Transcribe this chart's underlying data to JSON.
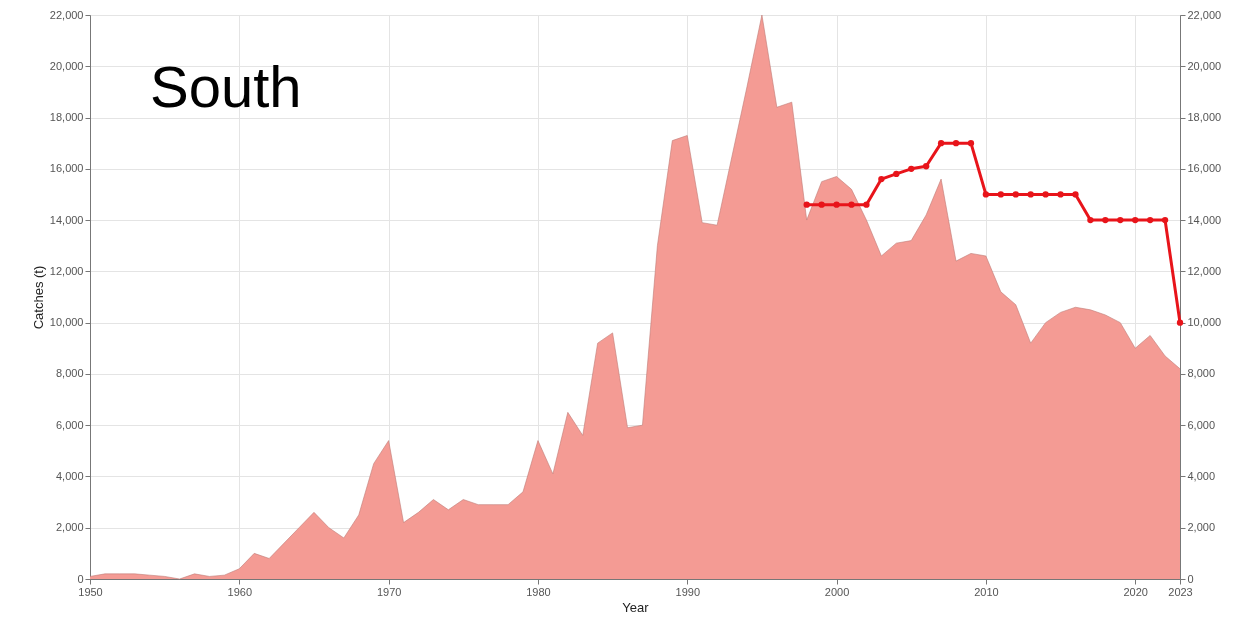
{
  "chart_data": {
    "type": "area",
    "title": "South",
    "xlabel": "Year",
    "ylabel": "Catches (t)",
    "xlim": [
      1950,
      2023
    ],
    "xticks": [
      1950,
      1960,
      1970,
      1980,
      1990,
      2000,
      2010,
      2020,
      2023
    ],
    "ylim": [
      0,
      22000
    ],
    "yticks": [
      0,
      {
        "value": 2000,
        "label": "2,000"
      },
      {
        "value": 4000,
        "label": "4,000"
      },
      {
        "value": 6000,
        "label": "6,000"
      },
      {
        "value": 8000,
        "label": "8,000"
      },
      {
        "value": 10000,
        "label": "10,000"
      },
      {
        "value": 12000,
        "label": "12,000"
      },
      {
        "value": 14000,
        "label": "14,000"
      },
      {
        "value": 16000,
        "label": "16,000"
      },
      {
        "value": 18000,
        "label": "18,000"
      },
      {
        "value": 20000,
        "label": "20,000"
      },
      {
        "value": 22000,
        "label": "22,000"
      }
    ],
    "y2lim": [
      0,
      22000
    ],
    "y2ticks": [
      0,
      {
        "value": 2000,
        "label": "2,000"
      },
      {
        "value": 4000,
        "label": "4,000"
      },
      {
        "value": 6000,
        "label": "6,000"
      },
      {
        "value": 8000,
        "label": "8,000"
      },
      {
        "value": 10000,
        "label": "10,000"
      },
      {
        "value": 12000,
        "label": "12,000"
      },
      {
        "value": 14000,
        "label": "14,000"
      },
      {
        "value": 16000,
        "label": "16,000"
      },
      {
        "value": 18000,
        "label": "18,000"
      },
      {
        "value": 20000,
        "label": "20,000"
      },
      {
        "value": 22000,
        "label": "22,000"
      }
    ],
    "grid": true,
    "series": [
      {
        "color": "#f49b94",
        "x": [
          1950,
          1951,
          1952,
          1953,
          1954,
          1955,
          1956,
          1957,
          1958,
          1959,
          1960,
          1961,
          1962,
          1963,
          1964,
          1965,
          1966,
          1967,
          1968,
          1969,
          1970,
          1971,
          1972,
          1973,
          1974,
          1975,
          1976,
          1977,
          1978,
          1979,
          1980,
          1981,
          1982,
          1983,
          1984,
          1985,
          1986,
          1987,
          1988,
          1989,
          1990,
          1991,
          1992,
          1993,
          1994,
          1995,
          1996,
          1997,
          1998,
          1999,
          2000,
          2001,
          2002,
          2003,
          2004,
          2005,
          2006,
          2007,
          2008,
          2009,
          2010,
          2011,
          2012,
          2013,
          2014,
          2015,
          2016,
          2017,
          2018,
          2019,
          2020,
          2021,
          2022,
          2023
        ],
        "values": [
          100,
          200,
          200,
          200,
          150,
          100,
          0,
          200,
          100,
          150,
          400,
          1000,
          800,
          1400,
          2000,
          2600,
          2000,
          1600,
          2500,
          4500,
          5400,
          2200,
          2600,
          3100,
          2700,
          3100,
          2900,
          2900,
          2900,
          3400,
          5400,
          4100,
          6500,
          5600,
          9200,
          9600,
          5900,
          6000,
          13000,
          17100,
          17300,
          13900,
          13800,
          16500,
          19200,
          22000,
          18400,
          18600,
          14000,
          15500,
          15700,
          15200,
          14000,
          12600,
          13100,
          13200,
          14200,
          15600,
          12400,
          12700,
          12600,
          11200,
          10700,
          9200,
          10000,
          10400,
          10600,
          10500,
          10300,
          10000,
          9000,
          9500,
          8700,
          8200
        ]
      },
      {
        "type": "line",
        "axis": "y2",
        "color": "#e8141a",
        "marker": "circle",
        "line_style": "solid",
        "x": [
          1998,
          1999,
          2000,
          2001,
          2002,
          2003,
          2004,
          2005,
          2006,
          2007,
          2008,
          2009,
          2010,
          2011,
          2012,
          2013,
          2014,
          2015,
          2016,
          2017,
          2018,
          2019,
          2020,
          2021,
          2022,
          2023
        ],
        "values": [
          14600,
          14600,
          14600,
          14600,
          14600,
          15600,
          15800,
          16000,
          16100,
          17000,
          17000,
          17000,
          15000,
          15000,
          15000,
          15000,
          15000,
          15000,
          15000,
          14000,
          14000,
          14000,
          14000,
          14000,
          14000,
          10000
        ]
      }
    ]
  }
}
